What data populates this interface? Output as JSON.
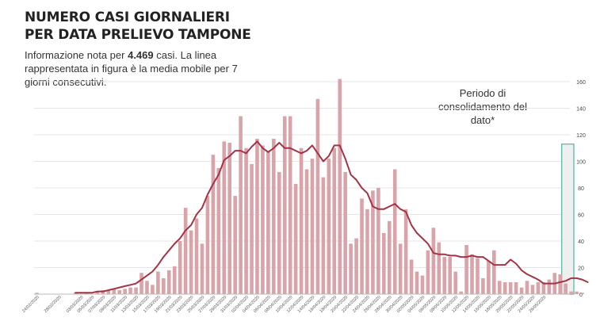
{
  "title_line1": "NUMERO CASI GIORNALIERI",
  "title_line2": "PER DATA PRELIEVO TAMPONE",
  "note": {
    "prefix": "Informazione nota per",
    "value": "4.469",
    "suffix": "casi. La linea rappresentata in figura è la media mobile per 7 giorni consecutivi."
  },
  "period_label": "Periodo di consolidamento del dato*",
  "colors": {
    "bar": "#d9a3aa",
    "line": "#a33445",
    "box_fill": "#edf0ef",
    "box_stroke": "#52b5a6",
    "grid": "#e6e6e6"
  },
  "chart_data": {
    "type": "bar",
    "title": "NUMERO CASI GIORNALIERI PER DATA PRELIEVO TAMPONE",
    "ylim": [
      0,
      160
    ],
    "yticks": [
      0,
      20,
      40,
      60,
      80,
      100,
      120,
      140,
      160
    ],
    "grid": true,
    "start_date": "24/02/2020",
    "values": [
      1,
      0,
      0,
      0,
      0,
      0,
      0,
      1,
      0,
      1,
      0,
      2,
      3,
      3,
      4,
      3,
      4,
      5,
      5,
      16,
      10,
      7,
      17,
      12,
      18,
      21,
      40,
      65,
      48,
      57,
      38,
      74,
      105,
      95,
      115,
      114,
      74,
      134,
      110,
      98,
      117,
      112,
      108,
      117,
      92,
      134,
      134,
      83,
      110,
      94,
      102,
      147,
      88,
      102,
      110,
      162,
      92,
      38,
      42,
      72,
      64,
      78,
      80,
      46,
      55,
      94,
      38,
      64,
      26,
      17,
      14,
      33,
      50,
      39,
      28,
      28,
      17,
      2,
      37,
      30,
      27,
      12,
      25,
      33,
      10,
      9,
      9,
      9,
      5,
      10,
      7,
      9,
      9,
      11,
      16,
      15,
      8,
      2,
      2,
      1
    ],
    "moving_average_start_index": 7,
    "moving_average": [
      1,
      1,
      1,
      1,
      2,
      2,
      3,
      4,
      5,
      6,
      7,
      8,
      11,
      14,
      17,
      22,
      28,
      33,
      38,
      42,
      48,
      52,
      60,
      65,
      75,
      83,
      90,
      101,
      104,
      108,
      108,
      106,
      111,
      115,
      110,
      107,
      110,
      114,
      110,
      110,
      108,
      106,
      108,
      112,
      106,
      100,
      104,
      112,
      112,
      102,
      90,
      86,
      80,
      76,
      66,
      64,
      64,
      66,
      68,
      64,
      62,
      52,
      46,
      42,
      38,
      31,
      30,
      30,
      29,
      29,
      28,
      28,
      29,
      28,
      28,
      25,
      22,
      22,
      22,
      26,
      23,
      18,
      15,
      13,
      11,
      8,
      8,
      8,
      9,
      10,
      12,
      12,
      11,
      9
    ],
    "tick_labels": [
      "24/02/2020",
      "28/02/2020",
      "03/03/2020",
      "05/03/2020",
      "07/03/2020",
      "09/03/2020",
      "11/03/2020",
      "13/03/2020",
      "15/03/2020",
      "17/03/2020",
      "19/03/2020",
      "21/03/2020",
      "23/03/2020",
      "25/03/2020",
      "27/03/2020",
      "29/03/2020",
      "31/03/2020",
      "02/04/2020",
      "04/04/2020",
      "06/04/2020",
      "08/04/2020",
      "10/04/2020",
      "12/04/2020",
      "14/04/2020",
      "16/04/2020",
      "18/04/2020",
      "20/04/2020",
      "22/04/2020",
      "24/04/2020",
      "26/04/2020",
      "28/04/2020",
      "30/04/2020",
      "02/05/2020",
      "04/05/2020",
      "06/05/2020",
      "08/05/2020",
      "10/05/2020",
      "12/05/2020",
      "14/05/2020",
      "16/05/2020",
      "18/05/2020",
      "20/05/2020",
      "22/05/2020",
      "24/05/2020",
      "26/05/2020"
    ],
    "tick_day_index": [
      0,
      4,
      8,
      10,
      12,
      14,
      16,
      18,
      20,
      22,
      24,
      26,
      28,
      30,
      32,
      34,
      36,
      38,
      40,
      42,
      44,
      46,
      48,
      50,
      52,
      54,
      56,
      58,
      60,
      62,
      64,
      66,
      68,
      70,
      72,
      74,
      76,
      78,
      80,
      82,
      84,
      86,
      88,
      90,
      92
    ],
    "consolidation_start_index": 96
  }
}
